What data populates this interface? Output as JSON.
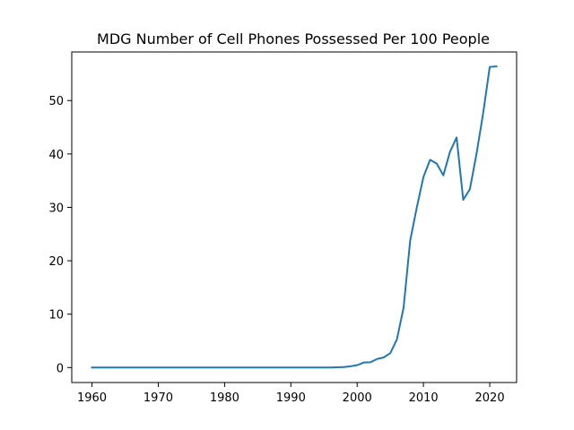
{
  "chart_data": {
    "type": "line",
    "title": "MDG Number of Cell Phones Possessed Per 100 People",
    "xlabel": "",
    "ylabel": "",
    "xlim": [
      1956.95,
      2024.05
    ],
    "ylim": [
      -2.8,
      59.1
    ],
    "x_ticks": [
      1960,
      1970,
      1980,
      1990,
      2000,
      2010,
      2020
    ],
    "y_ticks": [
      0,
      10,
      20,
      30,
      40,
      50
    ],
    "grid": false,
    "legend": "none",
    "series": [
      {
        "color": "#1f77b4",
        "x": [
          1960,
          1961,
          1962,
          1963,
          1964,
          1965,
          1966,
          1967,
          1968,
          1969,
          1970,
          1971,
          1972,
          1973,
          1974,
          1975,
          1976,
          1977,
          1978,
          1979,
          1980,
          1981,
          1982,
          1983,
          1984,
          1985,
          1986,
          1987,
          1988,
          1989,
          1990,
          1991,
          1992,
          1993,
          1994,
          1995,
          1996,
          1997,
          1998,
          1999,
          2000,
          2001,
          2002,
          2003,
          2004,
          2005,
          2006,
          2007,
          2008,
          2009,
          2010,
          2011,
          2012,
          2013,
          2014,
          2015,
          2016,
          2017,
          2018,
          2019,
          2020,
          2021
        ],
        "values": [
          0,
          0,
          0,
          0,
          0,
          0,
          0,
          0,
          0,
          0,
          0,
          0,
          0,
          0,
          0,
          0,
          0,
          0,
          0,
          0,
          0,
          0,
          0,
          0,
          0,
          0,
          0,
          0,
          0,
          0,
          0,
          0,
          0,
          0,
          0,
          0.01,
          0.02,
          0.05,
          0.1,
          0.25,
          0.45,
          0.95,
          1.0,
          1.6,
          1.9,
          2.7,
          5.3,
          11.2,
          23.8,
          30.0,
          35.7,
          38.9,
          38.2,
          36.0,
          40.4,
          43.1,
          31.4,
          33.4,
          40.0,
          47.6,
          56.3,
          56.4
        ]
      }
    ]
  }
}
